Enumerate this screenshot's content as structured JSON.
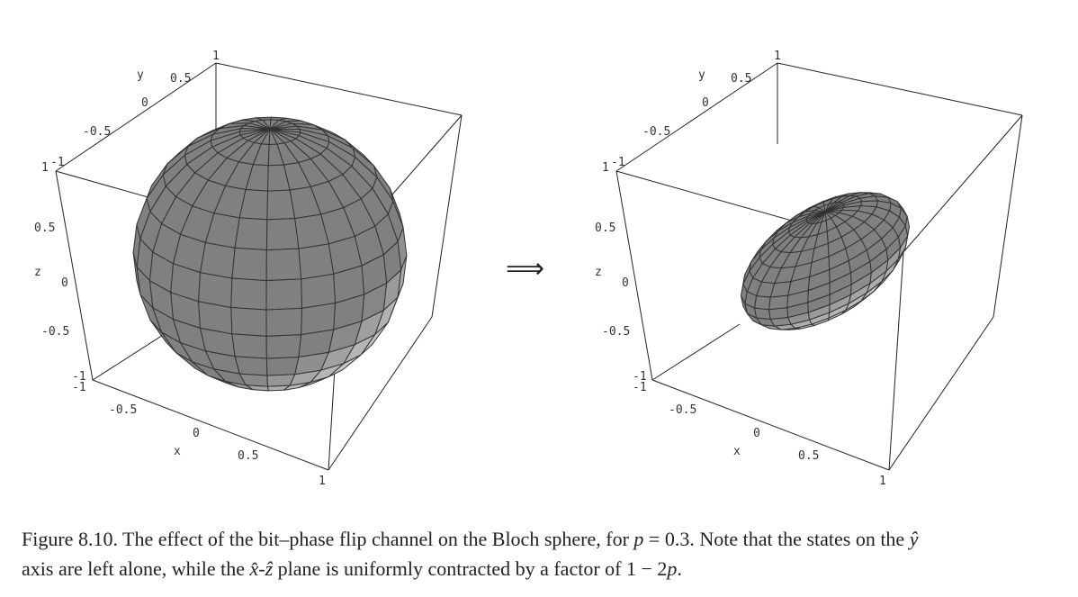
{
  "figure": {
    "left_plot": {
      "x_label": "x",
      "y_label": "y",
      "z_label": "z",
      "x_ticks": [
        "-1",
        "-0.5",
        "0",
        "0.5",
        "1"
      ],
      "y_ticks": [
        "-1",
        "-0.5",
        "0",
        "0.5",
        "1"
      ],
      "z_ticks": [
        "1",
        "0.5",
        "0",
        "-0.5",
        "-1"
      ],
      "surface": "sphere",
      "scale_x": 1,
      "scale_y": 1,
      "scale_z": 1
    },
    "arrow": "⟹",
    "right_plot": {
      "x_label": "x",
      "y_label": "y",
      "z_label": "z",
      "x_ticks": [
        "-1",
        "-0.5",
        "0",
        "0.5",
        "1"
      ],
      "y_ticks": [
        "-1",
        "-0.5",
        "0",
        "0.5",
        "1"
      ],
      "z_ticks": [
        "1",
        "0.5",
        "0",
        "-0.5",
        "-1"
      ],
      "surface": "ellipsoid",
      "scale_x": 0.4,
      "scale_y": 1,
      "scale_z": 0.4
    },
    "surface_fill": "#b4b4b4",
    "edge_color": "#333333"
  },
  "caption": {
    "label": "Figure 8.10.",
    "line1_text": " The effect of the bit–phase flip channel on the Bloch sphere, for ",
    "line1_var": "p",
    "line1_eq": " = 0.3. Note that the states on the ",
    "line1_axis": "ŷ",
    "line2_start": "axis are left alone, while the ",
    "line2_x": "x̂",
    "line2_dash": "-",
    "line2_z": "ẑ",
    "line2_mid": " plane is uniformly contracted by a factor of 1 − 2",
    "line2_var": "p",
    "line2_end": "."
  }
}
